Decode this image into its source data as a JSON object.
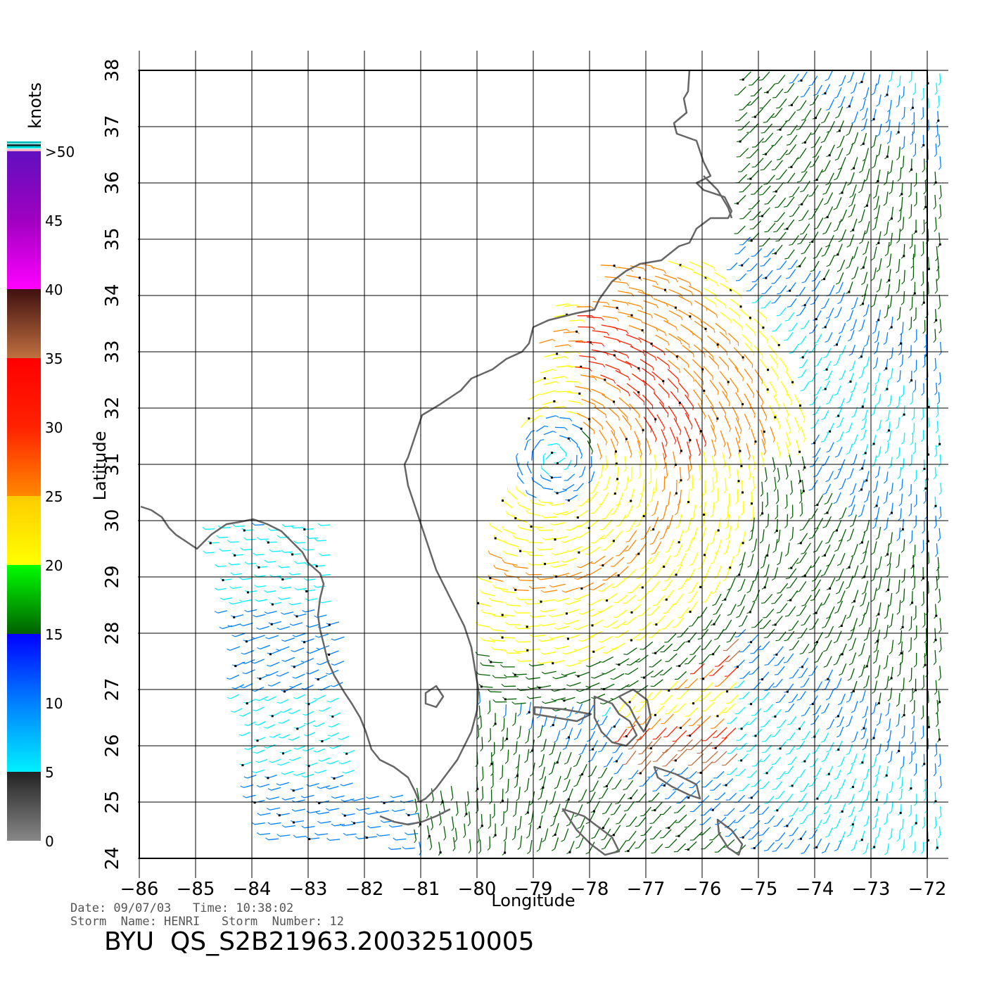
{
  "chart_data": {
    "type": "wind-vector-map",
    "x_axis": {
      "label": "Longitude",
      "range": [
        -86,
        -72
      ],
      "ticks": [
        -86,
        -85,
        -84,
        -83,
        -82,
        -81,
        -80,
        -79,
        -78,
        -77,
        -76,
        -75,
        -74,
        -73,
        -72
      ]
    },
    "y_axis": {
      "label": "Latitude",
      "range": [
        24,
        38
      ],
      "ticks": [
        24,
        25,
        26,
        27,
        28,
        29,
        30,
        31,
        32,
        33,
        34,
        35,
        36,
        37,
        38
      ]
    },
    "grid": true,
    "colorbar": {
      "title": "knots",
      "labels": [
        "0",
        "5",
        "10",
        "15",
        "20",
        "25",
        "30",
        "35",
        "40",
        "45",
        ">50"
      ],
      "stops": [
        {
          "value": 0,
          "color": "#888888"
        },
        {
          "value": 5,
          "color": "#222222"
        },
        {
          "value": 5,
          "color": "#00f0ff"
        },
        {
          "value": 10,
          "color": "#0080ff"
        },
        {
          "value": 15,
          "color": "#0000ff"
        },
        {
          "value": 15,
          "color": "#006000"
        },
        {
          "value": 20,
          "color": "#00ff00"
        },
        {
          "value": 20,
          "color": "#ffff00"
        },
        {
          "value": 25,
          "color": "#ffcc00"
        },
        {
          "value": 25,
          "color": "#ff8800"
        },
        {
          "value": 30,
          "color": "#ff2200"
        },
        {
          "value": 35,
          "color": "#ff0000"
        },
        {
          "value": 35,
          "color": "#c07040"
        },
        {
          "value": 40,
          "color": "#401010"
        },
        {
          "value": 40,
          "color": "#ff00ff"
        },
        {
          "value": 45,
          "color": "#a000c0"
        },
        {
          "value": 50,
          "color": "#6010c0"
        }
      ]
    },
    "storm_center": {
      "lon": -78.6,
      "lat": 31.1
    },
    "colors": {
      "coast": "#666666",
      "grid": "#000000"
    }
  },
  "info": {
    "date_line": "Date: 09/07/03   Time: 10:38:02",
    "storm_line": "Storm  Name: HENRI   Storm  Number: 12",
    "file_id": "BYU  QS_S2B21963.20032510005"
  }
}
